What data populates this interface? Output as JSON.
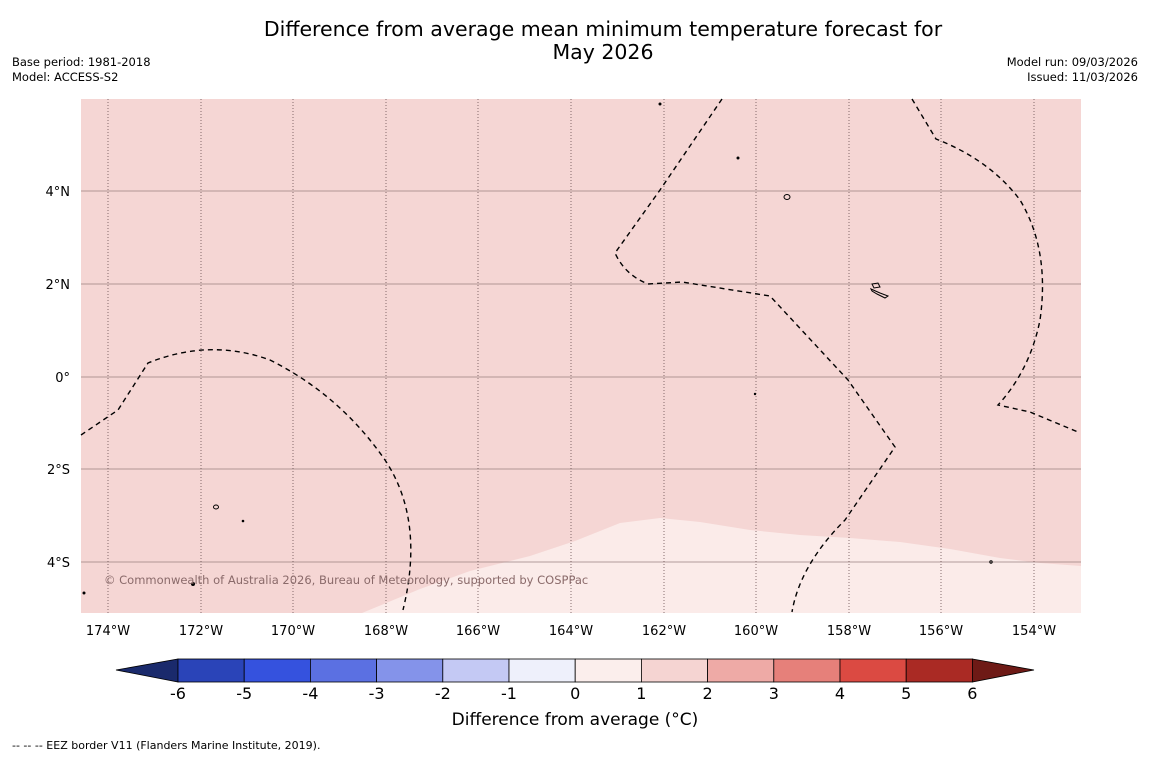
{
  "title_line1": "Difference from average mean minimum temperature forecast for",
  "title_line2": "May 2026",
  "base_period": "Base period: 1981-2018",
  "model": "Model: ACCESS-S2",
  "model_run": "Model run: 09/03/2026",
  "issued": "Issued: 11/03/2026",
  "copyright": "© Commonwealth of Australia 2026, Bureau of Meteorology, supported by COSPPac",
  "lat_labels": [
    "4°N",
    "2°N",
    "0°",
    "2°S",
    "4°S"
  ],
  "lon_labels": [
    "174°W",
    "172°W",
    "170°W",
    "168°W",
    "166°W",
    "164°W",
    "162°W",
    "160°W",
    "158°W",
    "156°W",
    "154°W"
  ],
  "colorbar": {
    "title": "Difference from average (°C)",
    "ticks": [
      "-6",
      "-5",
      "-4",
      "-3",
      "-2",
      "-1",
      "0",
      "1",
      "2",
      "3",
      "4",
      "5",
      "6"
    ],
    "colors": [
      "#1a2a6c",
      "#2a44b8",
      "#3552de",
      "#5b70e2",
      "#8493ea",
      "#c4c9f4",
      "#eef0fb",
      "#fbeeec",
      "#f5d4d2",
      "#eeaaa6",
      "#e6807a",
      "#db4a42",
      "#aa2a24",
      "#6e1a16"
    ]
  },
  "footer": "--  --  -- EEZ border V11 (Flanders Marine Institute, 2019).",
  "map_colors": {
    "anomaly_1_2": "#f5d6d4",
    "anomaly_0_1": "#fbebe9",
    "grid": "#9a8080"
  }
}
